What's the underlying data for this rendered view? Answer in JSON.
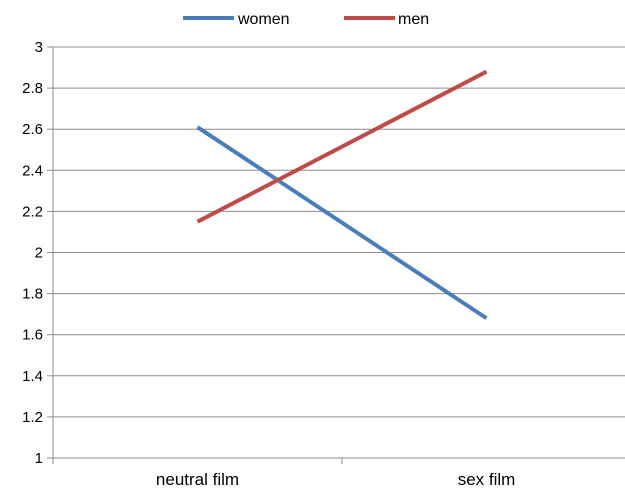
{
  "chart_data": {
    "type": "line",
    "categories": [
      "neutral film",
      "sex film"
    ],
    "series": [
      {
        "name": "women",
        "values": [
          2.61,
          1.68
        ],
        "color": "#4a7ebb"
      },
      {
        "name": "men",
        "values": [
          2.15,
          2.88
        ],
        "color": "#be4b48"
      }
    ],
    "ylim": [
      1,
      3
    ],
    "yticks": [
      "1",
      "1.2",
      "1.4",
      "1.6",
      "1.8",
      "2",
      "2.2",
      "2.4",
      "2.6",
      "2.8",
      "3"
    ],
    "grid": true,
    "legend_position": "top",
    "title": "",
    "xlabel": "",
    "ylabel": ""
  }
}
